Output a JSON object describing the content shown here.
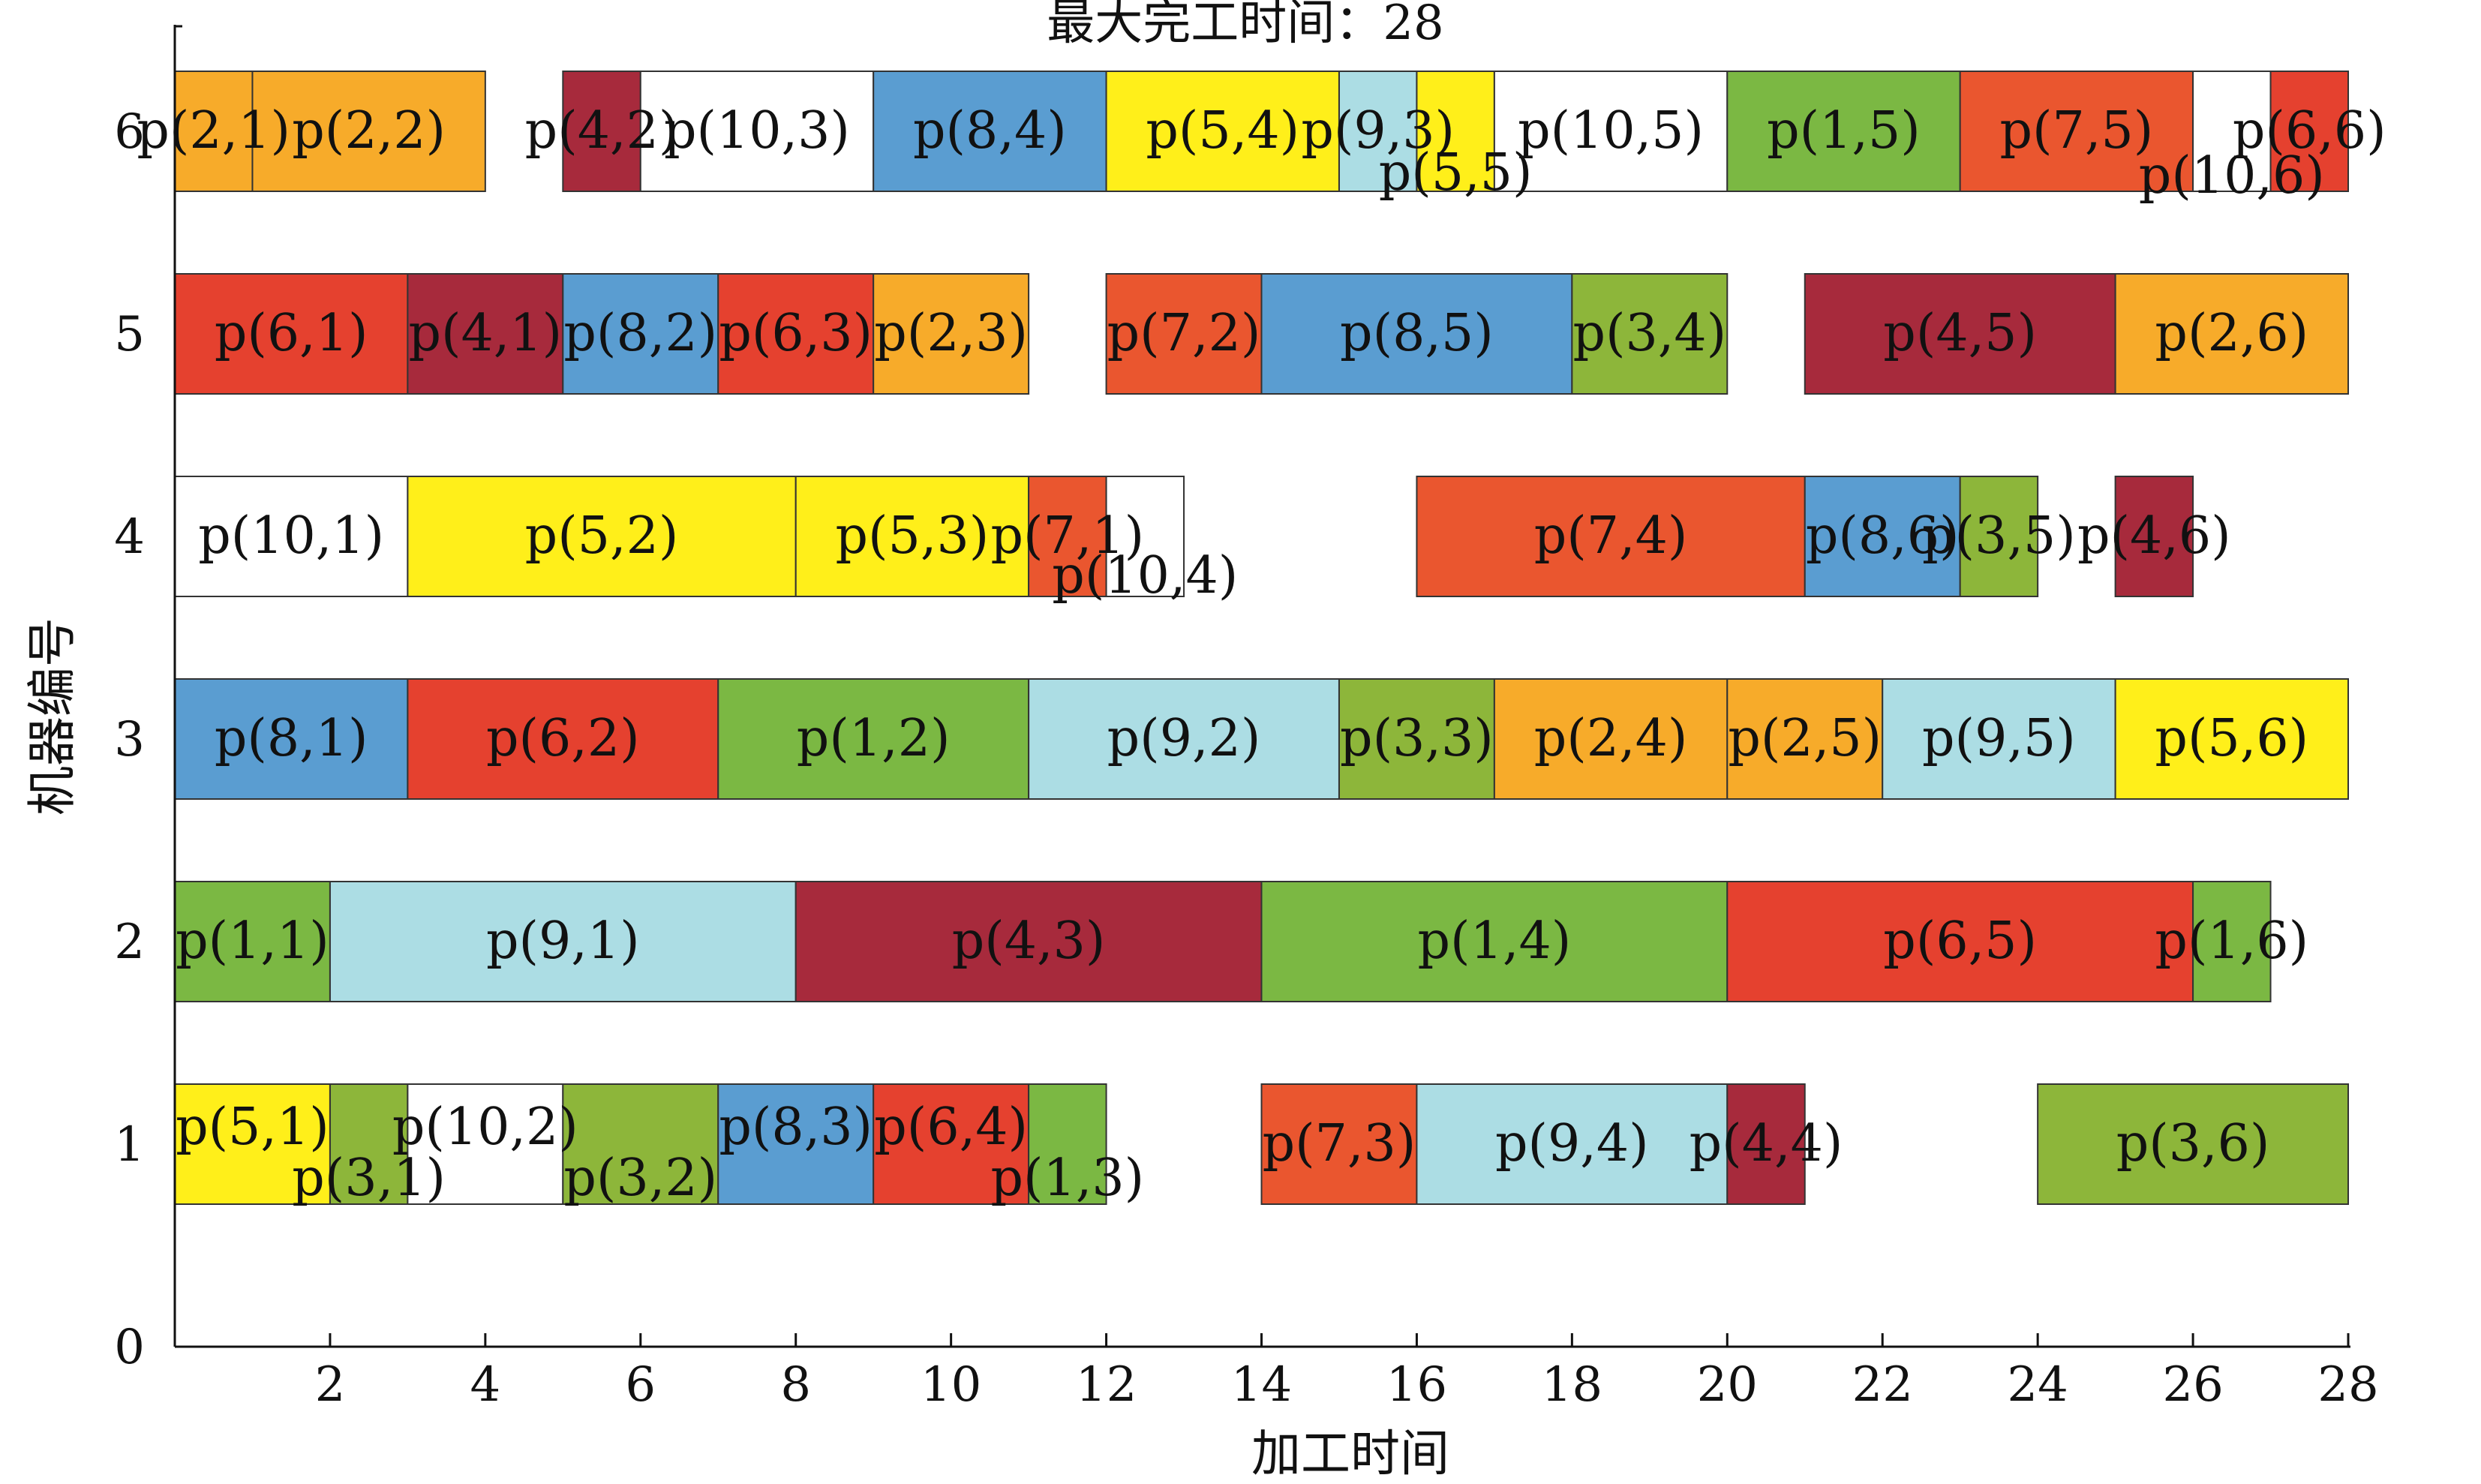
{
  "chart_data": {
    "type": "gantt",
    "title": "最大完工时间：28",
    "xlabel": "加工时间",
    "ylabel": "机器编号",
    "xlim": [
      0,
      28
    ],
    "ylim": [
      0,
      6
    ],
    "x_ticks": [
      2,
      4,
      6,
      8,
      10,
      12,
      14,
      16,
      18,
      20,
      22,
      24,
      26,
      28
    ],
    "y_ticks": [
      0,
      1,
      2,
      3,
      4,
      5,
      6
    ],
    "job_colors": {
      "1": "#7bb843",
      "2": "#f7ab2a",
      "3": "#8db63a",
      "4": "#a72a3c",
      "5": "#ffef1a",
      "6": "#e5412f",
      "7": "#ea562f",
      "8": "#5a9dd1",
      "9": "#acdde4",
      "10": "#ffffff"
    },
    "tasks": [
      {
        "machine": 1,
        "job": 5,
        "op": 1,
        "start": 0,
        "end": 2,
        "label": "p(5,1)"
      },
      {
        "machine": 1,
        "job": 3,
        "op": 1,
        "start": 2,
        "end": 3,
        "label": "p(3,1)"
      },
      {
        "machine": 1,
        "job": 10,
        "op": 2,
        "start": 3,
        "end": 5,
        "label": "p(10,2)"
      },
      {
        "machine": 1,
        "job": 3,
        "op": 2,
        "start": 5,
        "end": 7,
        "label": "p(3,2)"
      },
      {
        "machine": 1,
        "job": 8,
        "op": 3,
        "start": 7,
        "end": 9,
        "label": "p(8,3)"
      },
      {
        "machine": 1,
        "job": 6,
        "op": 4,
        "start": 9,
        "end": 11,
        "label": "p(6,4)"
      },
      {
        "machine": 1,
        "job": 1,
        "op": 3,
        "start": 11,
        "end": 12,
        "label": "p(1,3)"
      },
      {
        "machine": 1,
        "job": 7,
        "op": 3,
        "start": 14,
        "end": 16,
        "label": "p(7,3)"
      },
      {
        "machine": 1,
        "job": 9,
        "op": 4,
        "start": 16,
        "end": 20,
        "label": "p(9,4)"
      },
      {
        "machine": 1,
        "job": 4,
        "op": 4,
        "start": 20,
        "end": 21,
        "label": "p(4,4)"
      },
      {
        "machine": 1,
        "job": 3,
        "op": 6,
        "start": 24,
        "end": 28,
        "label": "p(3,6)"
      },
      {
        "machine": 2,
        "job": 1,
        "op": 1,
        "start": 0,
        "end": 2,
        "label": "p(1,1)"
      },
      {
        "machine": 2,
        "job": 9,
        "op": 1,
        "start": 2,
        "end": 8,
        "label": "p(9,1)"
      },
      {
        "machine": 2,
        "job": 4,
        "op": 3,
        "start": 8,
        "end": 14,
        "label": "p(4,3)"
      },
      {
        "machine": 2,
        "job": 1,
        "op": 4,
        "start": 14,
        "end": 20,
        "label": "p(1,4)"
      },
      {
        "machine": 2,
        "job": 6,
        "op": 5,
        "start": 20,
        "end": 26,
        "label": "p(6,5)"
      },
      {
        "machine": 2,
        "job": 1,
        "op": 6,
        "start": 26,
        "end": 27,
        "label": "p(1,6)"
      },
      {
        "machine": 3,
        "job": 8,
        "op": 1,
        "start": 0,
        "end": 3,
        "label": "p(8,1)"
      },
      {
        "machine": 3,
        "job": 6,
        "op": 2,
        "start": 3,
        "end": 7,
        "label": "p(6,2)"
      },
      {
        "machine": 3,
        "job": 1,
        "op": 2,
        "start": 7,
        "end": 11,
        "label": "p(1,2)"
      },
      {
        "machine": 3,
        "job": 9,
        "op": 2,
        "start": 11,
        "end": 15,
        "label": "p(9,2)"
      },
      {
        "machine": 3,
        "job": 3,
        "op": 3,
        "start": 15,
        "end": 17,
        "label": "p(3,3)"
      },
      {
        "machine": 3,
        "job": 2,
        "op": 4,
        "start": 17,
        "end": 20,
        "label": "p(2,4)"
      },
      {
        "machine": 3,
        "job": 2,
        "op": 5,
        "start": 20,
        "end": 22,
        "label": "p(2,5)"
      },
      {
        "machine": 3,
        "job": 9,
        "op": 5,
        "start": 22,
        "end": 25,
        "label": "p(9,5)"
      },
      {
        "machine": 3,
        "job": 5,
        "op": 6,
        "start": 25,
        "end": 28,
        "label": "p(5,6)"
      },
      {
        "machine": 4,
        "job": 10,
        "op": 1,
        "start": 0,
        "end": 3,
        "label": "p(10,1)"
      },
      {
        "machine": 4,
        "job": 5,
        "op": 2,
        "start": 3,
        "end": 8,
        "label": "p(5,2)"
      },
      {
        "machine": 4,
        "job": 5,
        "op": 3,
        "start": 8,
        "end": 11,
        "label": "p(5,3)"
      },
      {
        "machine": 4,
        "job": 7,
        "op": 1,
        "start": 11,
        "end": 12,
        "label": "p(7,1)"
      },
      {
        "machine": 4,
        "job": 10,
        "op": 4,
        "start": 12,
        "end": 13,
        "label": "p(10,4)"
      },
      {
        "machine": 4,
        "job": 7,
        "op": 4,
        "start": 16,
        "end": 21,
        "label": "p(7,4)"
      },
      {
        "machine": 4,
        "job": 8,
        "op": 6,
        "start": 21,
        "end": 23,
        "label": "p(8,6)"
      },
      {
        "machine": 4,
        "job": 3,
        "op": 5,
        "start": 23,
        "end": 24,
        "label": "p(3,5)"
      },
      {
        "machine": 4,
        "job": 4,
        "op": 6,
        "start": 25,
        "end": 26,
        "label": "p(4,6)"
      },
      {
        "machine": 5,
        "job": 6,
        "op": 1,
        "start": 0,
        "end": 3,
        "label": "p(6,1)"
      },
      {
        "machine": 5,
        "job": 4,
        "op": 1,
        "start": 3,
        "end": 5,
        "label": "p(4,1)"
      },
      {
        "machine": 5,
        "job": 8,
        "op": 2,
        "start": 5,
        "end": 7,
        "label": "p(8,2)"
      },
      {
        "machine": 5,
        "job": 6,
        "op": 3,
        "start": 7,
        "end": 9,
        "label": "p(6,3)"
      },
      {
        "machine": 5,
        "job": 2,
        "op": 3,
        "start": 9,
        "end": 11,
        "label": "p(2,3)"
      },
      {
        "machine": 5,
        "job": 7,
        "op": 2,
        "start": 12,
        "end": 14,
        "label": "p(7,2)"
      },
      {
        "machine": 5,
        "job": 8,
        "op": 5,
        "start": 14,
        "end": 18,
        "label": "p(8,5)"
      },
      {
        "machine": 5,
        "job": 3,
        "op": 4,
        "start": 18,
        "end": 20,
        "label": "p(3,4)"
      },
      {
        "machine": 5,
        "job": 4,
        "op": 5,
        "start": 21,
        "end": 25,
        "label": "p(4,5)"
      },
      {
        "machine": 5,
        "job": 2,
        "op": 6,
        "start": 25,
        "end": 28,
        "label": "p(2,6)"
      },
      {
        "machine": 6,
        "job": 2,
        "op": 1,
        "start": 0,
        "end": 1,
        "label": "p(2,1)"
      },
      {
        "machine": 6,
        "job": 2,
        "op": 2,
        "start": 1,
        "end": 4,
        "label": "p(2,2)"
      },
      {
        "machine": 6,
        "job": 4,
        "op": 2,
        "start": 5,
        "end": 6,
        "label": "p(4,2)"
      },
      {
        "machine": 6,
        "job": 10,
        "op": 3,
        "start": 6,
        "end": 9,
        "label": "p(10,3)"
      },
      {
        "machine": 6,
        "job": 8,
        "op": 4,
        "start": 9,
        "end": 12,
        "label": "p(8,4)"
      },
      {
        "machine": 6,
        "job": 5,
        "op": 4,
        "start": 12,
        "end": 15,
        "label": "p(5,4)"
      },
      {
        "machine": 6,
        "job": 9,
        "op": 3,
        "start": 15,
        "end": 16,
        "label": "p(9,3)"
      },
      {
        "machine": 6,
        "job": 5,
        "op": 5,
        "start": 16,
        "end": 17,
        "label": "p(5,5)"
      },
      {
        "machine": 6,
        "job": 10,
        "op": 5,
        "start": 17,
        "end": 20,
        "label": "p(10,5)"
      },
      {
        "machine": 6,
        "job": 1,
        "op": 5,
        "start": 20,
        "end": 23,
        "label": "p(1,5)"
      },
      {
        "machine": 6,
        "job": 7,
        "op": 5,
        "start": 23,
        "end": 26,
        "label": "p(7,5)"
      },
      {
        "machine": 6,
        "job": 10,
        "op": 6,
        "start": 26,
        "end": 27,
        "label": "p(10,6)"
      },
      {
        "machine": 6,
        "job": 6,
        "op": 6,
        "start": 27,
        "end": 28,
        "label": "p(6,6)"
      }
    ]
  }
}
